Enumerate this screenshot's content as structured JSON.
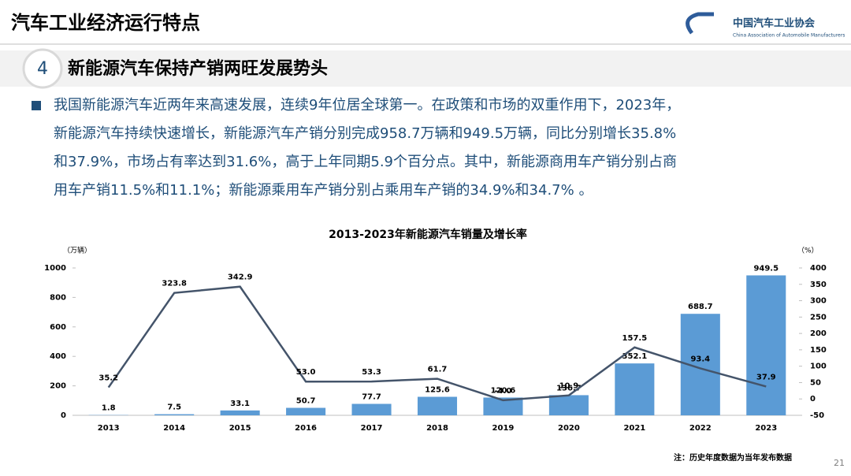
{
  "header": {
    "title": "汽车工业经济运行特点",
    "org_cn": "中国汽车工业协会",
    "org_en": "China Association of Automobile Manufacturers"
  },
  "section": {
    "number": "4",
    "title": "新能源汽车保持产销两旺发展势头"
  },
  "paragraph": [
    "我国新能源汽车近两年来高速发展，连续9年位居全球第一。在政策和市场的双重作用下，2023年，",
    "新能源汽车持续快速增长，新能源汽车产销分别完成958.7万辆和949.5万辆，同比分别增长35.8%",
    "和37.9%，市场占有率达到31.6%，高于上年同期5.9个百分点。其中，新能源商用车产销分别占商",
    "用车产销11.5%和11.1%；新能源乘用车产销分别占乘用车产销的34.9%和34.7% 。"
  ],
  "footnote": "注：历史年度数据为当年发布数据",
  "page_number": "21",
  "chart_data": {
    "type": "bar-line",
    "title": "2013-2023年新能源汽车销量及增长率",
    "y_label": "（万辆）",
    "y2_label": "（%）",
    "categories": [
      "2013",
      "2014",
      "2015",
      "2016",
      "2017",
      "2018",
      "2019",
      "2020",
      "2021",
      "2022",
      "2023"
    ],
    "series": [
      {
        "type": "bar",
        "color": "#5b9bd5",
        "values": [
          1.8,
          7.5,
          33.1,
          50.7,
          77.7,
          125.6,
          120.6,
          136.7,
          352.1,
          688.7,
          949.5
        ]
      },
      {
        "type": "line",
        "axis": "y2",
        "color": "#44546a",
        "values": [
          35.2,
          323.8,
          342.9,
          53.0,
          53.3,
          61.7,
          -4.0,
          10.9,
          157.5,
          93.4,
          37.9
        ],
        "value_labels": [
          "35.2",
          "323.8",
          "342.9",
          "53.0",
          "53.3",
          "61.7",
          "-4.0",
          "10.9",
          "157.5",
          "93.4",
          "37.9"
        ]
      }
    ],
    "ylim": [
      0,
      1000
    ],
    "yticks": [
      0,
      200,
      400,
      600,
      800,
      1000
    ],
    "y2lim": [
      -50,
      400
    ],
    "y2ticks": [
      -50,
      0,
      50,
      100,
      150,
      200,
      250,
      300,
      350,
      400
    ]
  }
}
